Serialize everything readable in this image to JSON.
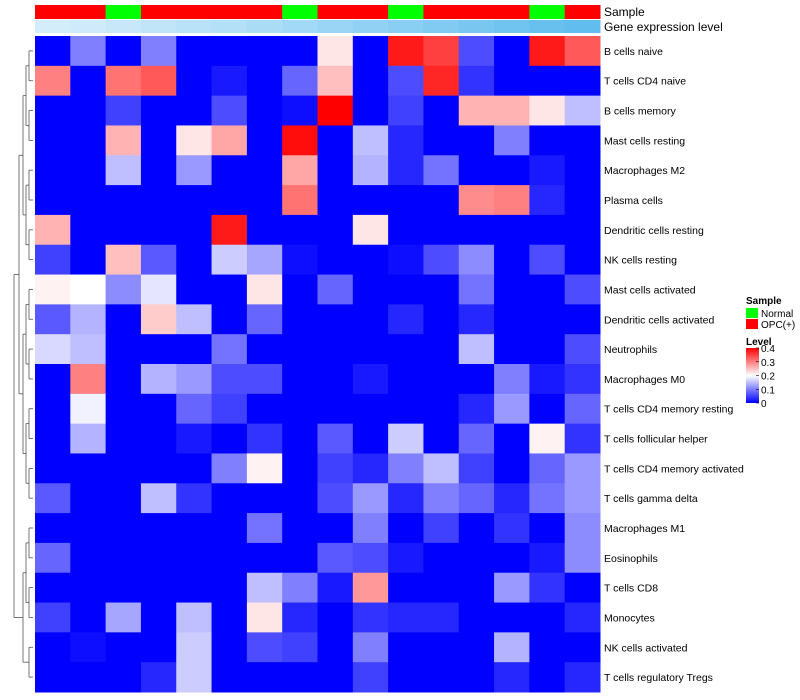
{
  "chart_data": {
    "type": "heatmap",
    "annotations": {
      "sample_label": "Sample",
      "expression_label": "Gene expression level",
      "sample_groups": [
        "OPC(+)",
        "OPC(+)",
        "Normal",
        "OPC(+)",
        "OPC(+)",
        "OPC(+)",
        "OPC(+)",
        "Normal",
        "OPC(+)",
        "OPC(+)",
        "Normal",
        "OPC(+)",
        "OPC(+)",
        "OPC(+)",
        "Normal",
        "OPC(+)"
      ],
      "expression_levels": [
        0.2,
        0.23,
        0.27,
        0.32,
        0.36,
        0.4,
        0.45,
        0.5,
        0.55,
        0.6,
        0.65,
        0.7,
        0.75,
        0.8,
        0.85,
        0.9
      ]
    },
    "rows": [
      "B cells naive",
      "T cells CD4 naive",
      "B cells memory",
      "Mast cells resting",
      "Macrophages M2",
      "Plasma cells",
      "Dendritic cells resting",
      "NK cells resting",
      "Mast cells activated",
      "Dendritic cells activated",
      "Neutrophils",
      "Macrophages M0",
      "T cells CD4 memory resting",
      "T cells follicular helper",
      "T cells CD4 memory activated",
      "T cells gamma delta",
      "Macrophages M1",
      "Eosinophils",
      "T cells CD8",
      "Monocytes",
      "NK cells activated",
      "T cells regulatory  Tregs"
    ],
    "values": [
      [
        0.0,
        0.1,
        0.0,
        0.1,
        0.0,
        0.0,
        0.0,
        0.0,
        0.22,
        0.0,
        0.38,
        0.35,
        0.06,
        0.0,
        0.38,
        0.33
      ],
      [
        0.3,
        0.0,
        0.31,
        0.33,
        0.0,
        0.02,
        0.0,
        0.08,
        0.25,
        0.0,
        0.06,
        0.37,
        0.04,
        0.0,
        0.0,
        0.0
      ],
      [
        0.0,
        0.0,
        0.05,
        0.0,
        0.0,
        0.06,
        0.0,
        0.01,
        0.4,
        0.0,
        0.05,
        0.0,
        0.26,
        0.26,
        0.22,
        0.15
      ],
      [
        0.0,
        0.0,
        0.26,
        0.0,
        0.22,
        0.27,
        0.0,
        0.39,
        0.0,
        0.15,
        0.03,
        0.0,
        0.0,
        0.1,
        0.0,
        0.0
      ],
      [
        0.0,
        0.0,
        0.15,
        0.0,
        0.12,
        0.0,
        0.0,
        0.27,
        0.0,
        0.14,
        0.03,
        0.09,
        0.0,
        0.0,
        0.02,
        0.0
      ],
      [
        0.0,
        0.0,
        0.0,
        0.0,
        0.0,
        0.0,
        0.0,
        0.31,
        0.0,
        0.0,
        0.0,
        0.0,
        0.29,
        0.3,
        0.03,
        0.0
      ],
      [
        0.26,
        0.0,
        0.0,
        0.0,
        0.0,
        0.38,
        0.0,
        0.0,
        0.0,
        0.22,
        0.0,
        0.0,
        0.0,
        0.0,
        0.0,
        0.0
      ],
      [
        0.05,
        0.0,
        0.25,
        0.07,
        0.0,
        0.16,
        0.13,
        0.01,
        0.0,
        0.0,
        0.01,
        0.06,
        0.11,
        0.0,
        0.06,
        0.0
      ],
      [
        0.21,
        0.2,
        0.11,
        0.18,
        0.0,
        0.0,
        0.22,
        0.0,
        0.08,
        0.0,
        0.0,
        0.0,
        0.09,
        0.0,
        0.0,
        0.06
      ],
      [
        0.07,
        0.14,
        0.0,
        0.24,
        0.15,
        0.0,
        0.08,
        0.0,
        0.0,
        0.0,
        0.03,
        0.0,
        0.03,
        0.0,
        0.0,
        0.0
      ],
      [
        0.17,
        0.15,
        0.0,
        0.0,
        0.0,
        0.09,
        0.0,
        0.0,
        0.0,
        0.0,
        0.0,
        0.0,
        0.15,
        0.0,
        0.0,
        0.06
      ],
      [
        0.0,
        0.3,
        0.0,
        0.14,
        0.12,
        0.06,
        0.06,
        0.0,
        0.0,
        0.02,
        0.0,
        0.0,
        0.0,
        0.1,
        0.02,
        0.04
      ],
      [
        0.0,
        0.19,
        0.0,
        0.0,
        0.08,
        0.05,
        0.0,
        0.0,
        0.0,
        0.0,
        0.0,
        0.0,
        0.03,
        0.12,
        0.0,
        0.08
      ],
      [
        0.0,
        0.14,
        0.0,
        0.0,
        0.02,
        0.0,
        0.04,
        0.0,
        0.07,
        0.0,
        0.16,
        0.0,
        0.08,
        0.0,
        0.21,
        0.04
      ],
      [
        0.0,
        0.0,
        0.0,
        0.0,
        0.0,
        0.1,
        0.21,
        0.0,
        0.05,
        0.03,
        0.1,
        0.15,
        0.05,
        0.0,
        0.08,
        0.12
      ],
      [
        0.07,
        0.0,
        0.0,
        0.15,
        0.04,
        0.0,
        0.0,
        0.0,
        0.06,
        0.12,
        0.03,
        0.1,
        0.08,
        0.03,
        0.09,
        0.12
      ],
      [
        0.0,
        0.0,
        0.0,
        0.0,
        0.0,
        0.0,
        0.09,
        0.0,
        0.0,
        0.1,
        0.0,
        0.05,
        0.0,
        0.04,
        0.0,
        0.11
      ],
      [
        0.08,
        0.0,
        0.0,
        0.0,
        0.0,
        0.0,
        0.0,
        0.0,
        0.07,
        0.06,
        0.02,
        0.0,
        0.0,
        0.0,
        0.02,
        0.11
      ],
      [
        0.0,
        0.0,
        0.0,
        0.0,
        0.0,
        0.0,
        0.15,
        0.1,
        0.02,
        0.28,
        0.0,
        0.0,
        0.0,
        0.12,
        0.04,
        0.0
      ],
      [
        0.05,
        0.0,
        0.13,
        0.0,
        0.15,
        0.0,
        0.22,
        0.03,
        0.0,
        0.04,
        0.03,
        0.03,
        0.0,
        0.0,
        0.0,
        0.03
      ],
      [
        0.0,
        0.01,
        0.0,
        0.0,
        0.16,
        0.0,
        0.06,
        0.05,
        0.0,
        0.1,
        0.0,
        0.0,
        0.0,
        0.14,
        0.0,
        0.0
      ],
      [
        0.0,
        0.0,
        0.0,
        0.03,
        0.16,
        0.0,
        0.0,
        0.0,
        0.0,
        0.05,
        0.0,
        0.0,
        0.0,
        0.03,
        0.0,
        0.03
      ]
    ],
    "legend": {
      "sample_title": "Sample",
      "sample_entries": [
        {
          "label": "Normal",
          "color": "#00ff00"
        },
        {
          "label": "OPC(+)",
          "color": "#ff0000"
        }
      ],
      "level_title": "Level",
      "level_ticks": [
        "0.4",
        "0.3",
        "0.2",
        "0.1",
        "0"
      ],
      "level_tick_values": [
        0.4,
        0.3,
        0.2,
        0.1,
        0
      ],
      "position": "right"
    },
    "colors": {
      "low": "#0000ff",
      "mid": "#ffffff",
      "high": "#ff0000",
      "normal": "#00ff00",
      "opc": "#ff0000",
      "expression_low": "#f5fbff",
      "expression_high": "#4fb6ec"
    },
    "value_range": [
      0,
      0.4
    ]
  }
}
